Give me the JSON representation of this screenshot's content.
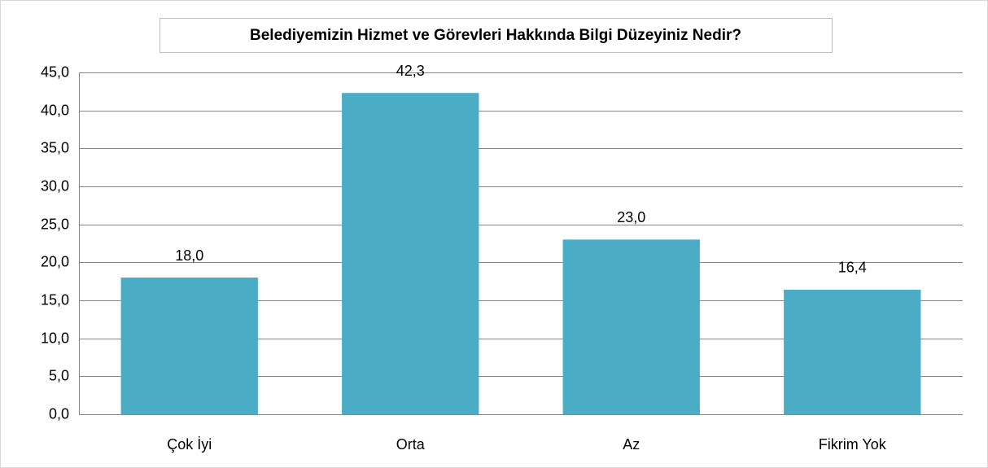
{
  "chart_data": {
    "type": "bar",
    "title": "Belediyemizin Hizmet ve Görevleri Hakkında Bilgi Düzeyiniz Nedir?",
    "categories": [
      "Çok İyi",
      "Orta",
      "Az",
      "Fikrim Yok"
    ],
    "values": [
      18.0,
      42.3,
      23.0,
      16.4
    ],
    "value_labels": [
      "18,0",
      "42,3",
      "23,0",
      "16,4"
    ],
    "color": "#4bacc6",
    "ylim": [
      0,
      45
    ],
    "yticks": [
      {
        "value": 0,
        "label": "0,0"
      },
      {
        "value": 5,
        "label": "5,0"
      },
      {
        "value": 10,
        "label": "10,0"
      },
      {
        "value": 15,
        "label": "15,0"
      },
      {
        "value": 20,
        "label": "20,0"
      },
      {
        "value": 25,
        "label": "25,0"
      },
      {
        "value": 30,
        "label": "30,0"
      },
      {
        "value": 35,
        "label": "35,0"
      },
      {
        "value": 40,
        "label": "40,0"
      },
      {
        "value": 45,
        "label": "45,0"
      }
    ],
    "grid": true
  }
}
